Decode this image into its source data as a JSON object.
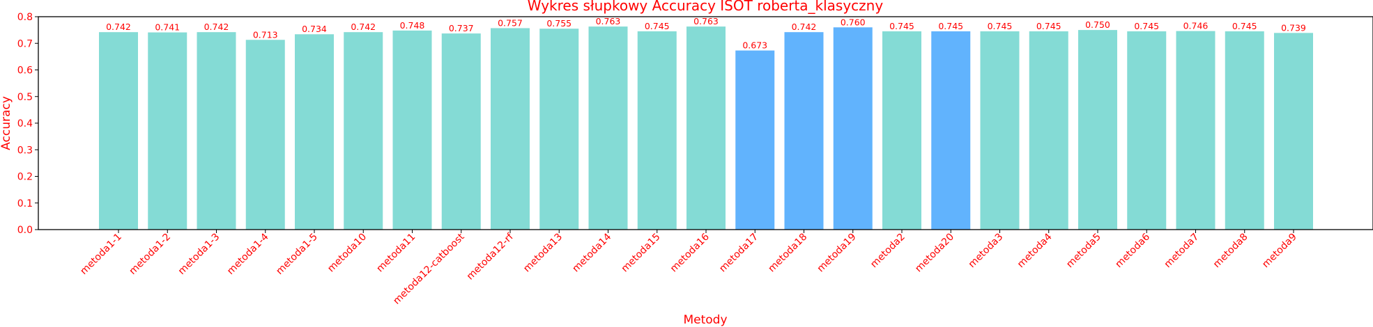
{
  "chart_data": {
    "type": "bar",
    "title": "Wykres słupkowy Accuracy ISOT roberta_klasyczny",
    "xlabel": "Metody",
    "ylabel": "Accuracy",
    "ylim": [
      0,
      0.8
    ],
    "yticks": [
      "0.0",
      "0.1",
      "0.2",
      "0.3",
      "0.4",
      "0.5",
      "0.6",
      "0.7",
      "0.8"
    ],
    "grid": false,
    "text_color": "#ff0000",
    "colors": {
      "default": "#84dbd5",
      "highlight": "#61b3fd"
    },
    "categories": [
      "metoda1-1",
      "metoda1-2",
      "metoda1-3",
      "metoda1-4",
      "metoda1-5",
      "metoda10",
      "metoda11",
      "metoda12-catboost",
      "metoda12-rf",
      "metoda13",
      "metoda14",
      "metoda15",
      "metoda16",
      "metoda17",
      "metoda18",
      "metoda19",
      "metoda2",
      "metoda20",
      "metoda3",
      "metoda4",
      "metoda5",
      "metoda6",
      "metoda7",
      "metoda8",
      "metoda9"
    ],
    "values": [
      0.742,
      0.741,
      0.742,
      0.713,
      0.734,
      0.742,
      0.748,
      0.737,
      0.757,
      0.755,
      0.763,
      0.745,
      0.763,
      0.673,
      0.742,
      0.76,
      0.745,
      0.745,
      0.745,
      0.745,
      0.75,
      0.745,
      0.746,
      0.745,
      0.739
    ],
    "value_labels": [
      "0.742",
      "0.741",
      "0.742",
      "0.713",
      "0.734",
      "0.742",
      "0.748",
      "0.737",
      "0.757",
      "0.755",
      "0.763",
      "0.745",
      "0.763",
      "0.673",
      "0.742",
      "0.760",
      "0.745",
      "0.745",
      "0.745",
      "0.745",
      "0.750",
      "0.745",
      "0.746",
      "0.745",
      "0.739"
    ],
    "highlighted": [
      "metoda17",
      "metoda18",
      "metoda19",
      "metoda20"
    ]
  }
}
